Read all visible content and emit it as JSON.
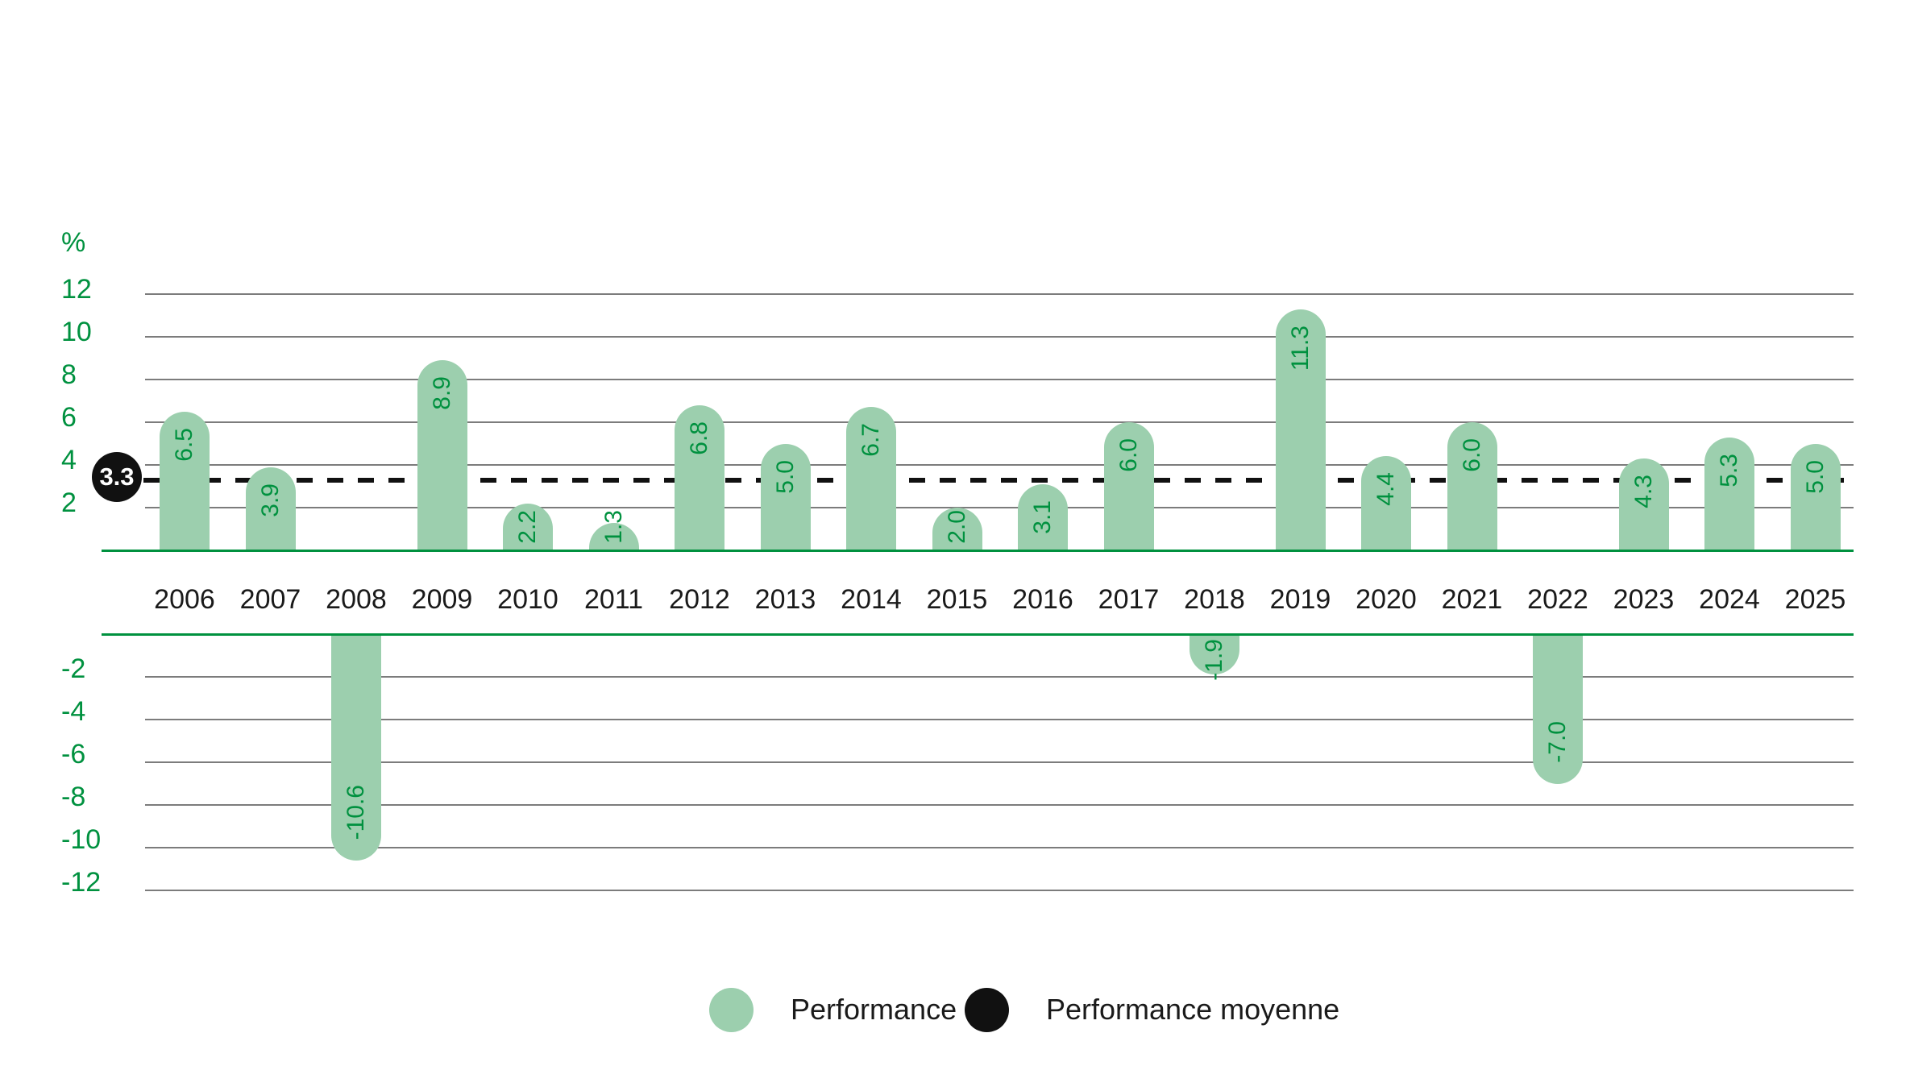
{
  "colors": {
    "bar_green": "#9CCFAE",
    "accent_green": "#00913F",
    "grid_gray": "#7C7C7C",
    "text_black": "#1A1A1A",
    "average_black": "#111111",
    "badge_text": "#FFFFFF",
    "background": "#FFFFFF"
  },
  "chart_data": {
    "type": "bar",
    "title": "",
    "unit_label": "%",
    "categories": [
      "2006",
      "2007",
      "2008",
      "2009",
      "2010",
      "2011",
      "2012",
      "2013",
      "2014",
      "2015",
      "2016",
      "2017",
      "2018",
      "2019",
      "2020",
      "2021",
      "2022",
      "2023",
      "2024",
      "2025"
    ],
    "values": [
      6.5,
      3.9,
      -10.6,
      8.9,
      2.2,
      1.3,
      6.8,
      5.0,
      6.7,
      2.0,
      3.1,
      6.0,
      -1.9,
      11.3,
      4.4,
      6.0,
      -7.0,
      4.3,
      5.3,
      5.0
    ],
    "value_labels": [
      "6.5",
      "3.9",
      "-10.6",
      "8.9",
      "2.2",
      "1.3",
      "6.8",
      "5.0",
      "6.7",
      "2.0",
      "3.1",
      "6.0",
      "-1.9",
      "11.3",
      "4.4",
      "6.0",
      "-7.0",
      "4.3",
      "5.3",
      "5.0"
    ],
    "average": 3.3,
    "average_label": "3.3",
    "y_ticks_positive": [
      "12",
      "10",
      "8",
      "6",
      "4",
      "2"
    ],
    "y_ticks_negative": [
      "-2",
      "-4",
      "-6",
      "-8",
      "-10",
      "-12"
    ],
    "ylim": [
      -12.7,
      12.7
    ],
    "grid": true,
    "average_line_style": "dashed",
    "legend_position": "bottom",
    "legend": [
      {
        "label": "Performance",
        "color": "#9CCFAE"
      },
      {
        "label": "Performance moyenne",
        "color": "#111111"
      }
    ]
  }
}
